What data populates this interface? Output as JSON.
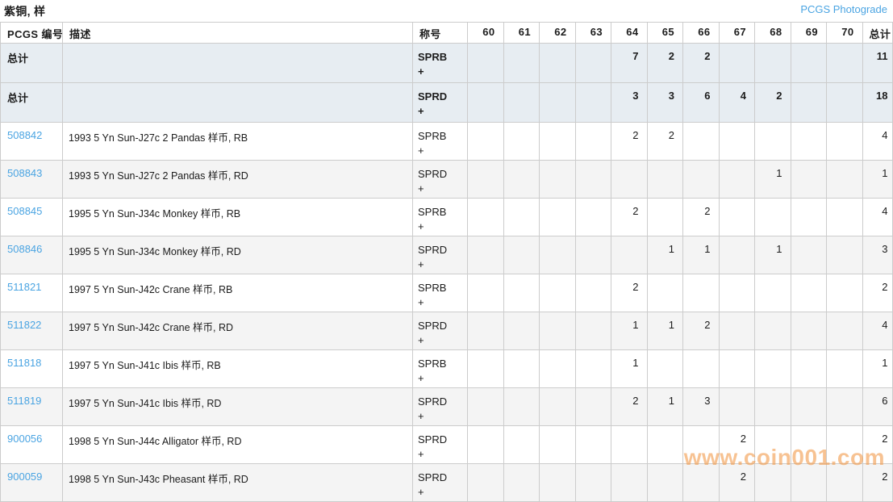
{
  "page": {
    "title": "紫铜, 样",
    "photograde_link": "PCGS Photograde"
  },
  "watermark": "www.coin001.com",
  "colors": {
    "link_blue": "#4aa4e2",
    "total_row_bg": "#e7edf2",
    "alt_row_bg": "#f4f4f4",
    "border": "#cccccc",
    "watermark_orange": "rgba(242,153,74,0.6)"
  },
  "table": {
    "headers": {
      "pcgs_number": "PCGS 编号",
      "description": "描述",
      "designation": "称号",
      "grades": [
        "60",
        "61",
        "62",
        "63",
        "64",
        "65",
        "66",
        "67",
        "68",
        "69",
        "70"
      ],
      "total": "总计"
    },
    "total_rows": [
      {
        "label": "总计",
        "description": "",
        "designation": "SPRB +",
        "grades": [
          "",
          "",
          "",
          "",
          "7",
          "2",
          "2",
          "",
          "",
          "",
          ""
        ],
        "total": "11"
      },
      {
        "label": "总计",
        "description": "",
        "designation": "SPRD +",
        "grades": [
          "",
          "",
          "",
          "",
          "3",
          "3",
          "6",
          "4",
          "2",
          "",
          ""
        ],
        "total": "18"
      }
    ],
    "rows": [
      {
        "pcgs_number": "508842",
        "description": "1993 5 Yn Sun-J27c 2 Pandas 样币, RB",
        "designation": "SPRB +",
        "grades": [
          "",
          "",
          "",
          "",
          "2",
          "2",
          "",
          "",
          "",
          "",
          ""
        ],
        "total": "4"
      },
      {
        "pcgs_number": "508843",
        "description": "1993 5 Yn Sun-J27c 2 Pandas 样币, RD",
        "designation": "SPRD +",
        "grades": [
          "",
          "",
          "",
          "",
          "",
          "",
          "",
          "",
          "1",
          "",
          ""
        ],
        "total": "1"
      },
      {
        "pcgs_number": "508845",
        "description": "1995 5 Yn Sun-J34c Monkey 样币, RB",
        "designation": "SPRB +",
        "grades": [
          "",
          "",
          "",
          "",
          "2",
          "",
          "2",
          "",
          "",
          "",
          ""
        ],
        "total": "4"
      },
      {
        "pcgs_number": "508846",
        "description": "1995 5 Yn Sun-J34c Monkey 样币, RD",
        "designation": "SPRD +",
        "grades": [
          "",
          "",
          "",
          "",
          "",
          "1",
          "1",
          "",
          "1",
          "",
          ""
        ],
        "total": "3"
      },
      {
        "pcgs_number": "511821",
        "description": "1997 5 Yn Sun-J42c Crane 样币, RB",
        "designation": "SPRB +",
        "grades": [
          "",
          "",
          "",
          "",
          "2",
          "",
          "",
          "",
          "",
          "",
          ""
        ],
        "total": "2"
      },
      {
        "pcgs_number": "511822",
        "description": "1997 5 Yn Sun-J42c Crane 样币, RD",
        "designation": "SPRD +",
        "grades": [
          "",
          "",
          "",
          "",
          "1",
          "1",
          "2",
          "",
          "",
          "",
          ""
        ],
        "total": "4"
      },
      {
        "pcgs_number": "511818",
        "description": "1997 5 Yn Sun-J41c Ibis 样币, RB",
        "designation": "SPRB +",
        "grades": [
          "",
          "",
          "",
          "",
          "1",
          "",
          "",
          "",
          "",
          "",
          ""
        ],
        "total": "1"
      },
      {
        "pcgs_number": "511819",
        "description": "1997 5 Yn Sun-J41c Ibis 样币, RD",
        "designation": "SPRD +",
        "grades": [
          "",
          "",
          "",
          "",
          "2",
          "1",
          "3",
          "",
          "",
          "",
          ""
        ],
        "total": "6"
      },
      {
        "pcgs_number": "900056",
        "description": "1998 5 Yn Sun-J44c Alligator 样币, RD",
        "designation": "SPRD +",
        "grades": [
          "",
          "",
          "",
          "",
          "",
          "",
          "",
          "2",
          "",
          "",
          ""
        ],
        "total": "2"
      },
      {
        "pcgs_number": "900059",
        "description": "1998 5 Yn Sun-J43c Pheasant 样币, RD",
        "designation": "SPRD +",
        "grades": [
          "",
          "",
          "",
          "",
          "",
          "",
          "",
          "2",
          "",
          "",
          ""
        ],
        "total": "2"
      }
    ]
  }
}
